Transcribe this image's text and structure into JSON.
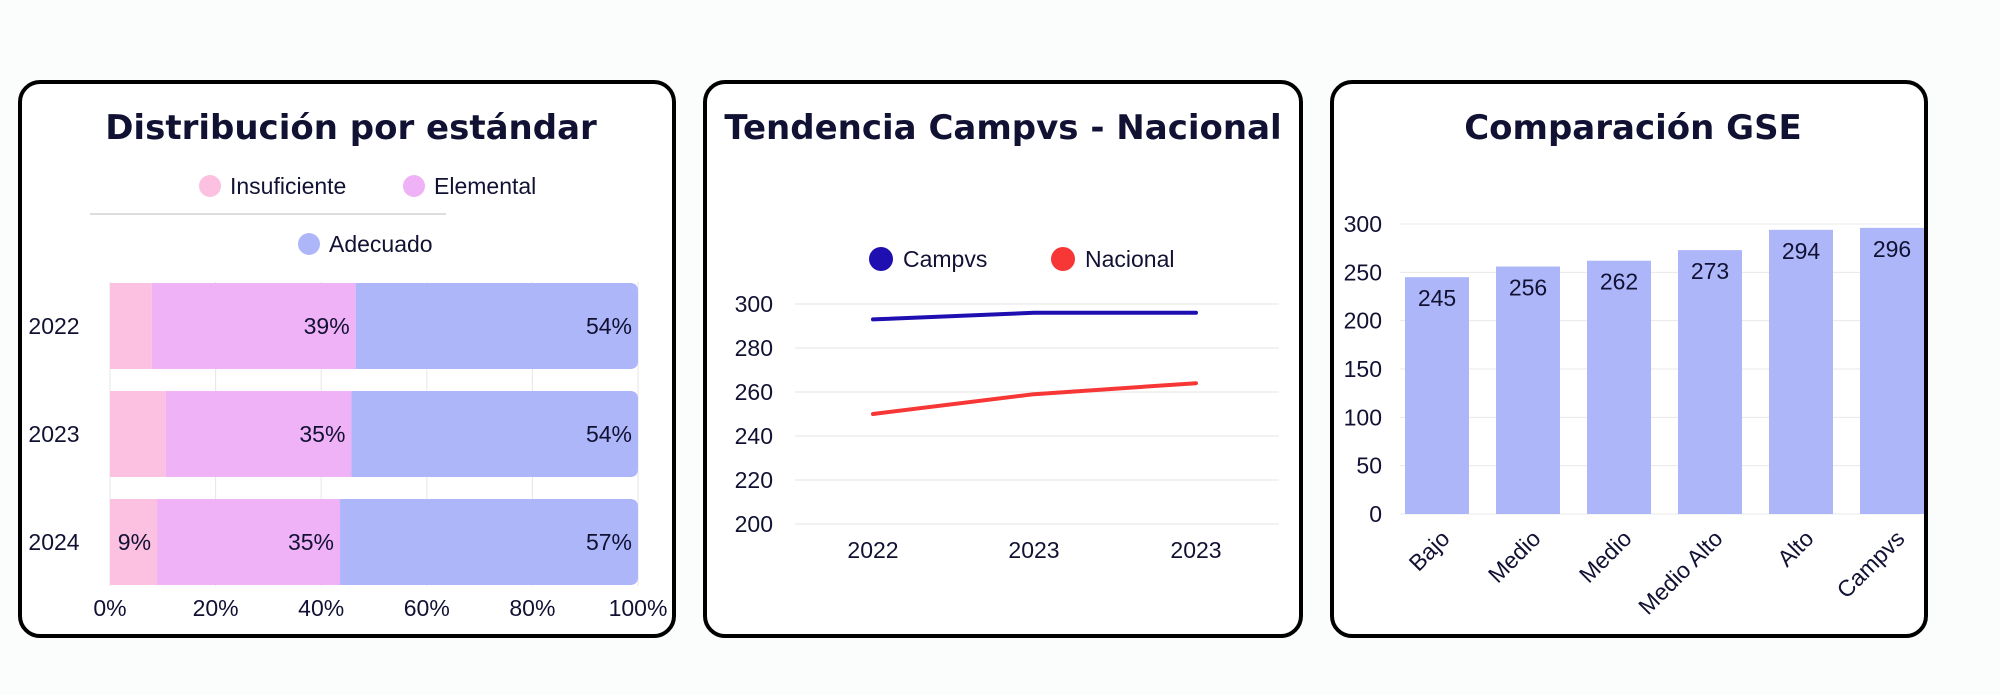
{
  "colors": {
    "insuficiente": "#fcc1e0",
    "elemental": "#f0b2f7",
    "adecuado": "#aeb6fa",
    "campvs": "#1f0fb0",
    "nacional": "#f73636",
    "bars": "#aeb6fa"
  },
  "chart_data": [
    {
      "type": "bar",
      "orientation": "horizontal",
      "stacked": true,
      "title": "Distribución por estándar",
      "categories": [
        "2022",
        "2023",
        "2024"
      ],
      "series": [
        {
          "name": "Insuficiente",
          "values": [
            8,
            10.5,
            9
          ],
          "labels": [
            "",
            "",
            "9%"
          ]
        },
        {
          "name": "Elemental",
          "values": [
            39,
            35,
            35
          ],
          "labels": [
            "39%",
            "35%",
            "35%"
          ]
        },
        {
          "name": "Adecuado",
          "values": [
            54,
            54,
            57
          ],
          "labels": [
            "54%",
            "54%",
            "57%"
          ]
        }
      ],
      "xlim": [
        0,
        100
      ],
      "xticks": [
        "0%",
        "20%",
        "40%",
        "60%",
        "80%",
        "100%"
      ],
      "grid": true,
      "legend": "top"
    },
    {
      "type": "line",
      "title": "Tendencia Campvs - Nacional",
      "x": [
        "2022",
        "2023",
        "2023"
      ],
      "series": [
        {
          "name": "Campvs",
          "values": [
            293,
            296,
            296
          ]
        },
        {
          "name": "Nacional",
          "values": [
            250,
            259,
            264
          ]
        }
      ],
      "ylim": [
        200,
        300
      ],
      "yticks": [
        "200",
        "220",
        "240",
        "260",
        "280",
        "300"
      ],
      "grid": true,
      "legend": "top"
    },
    {
      "type": "bar",
      "title": "Comparación GSE",
      "categories": [
        "Bajo",
        "Medio",
        "Medio",
        "Medio Alto",
        "Alto",
        "Campvs"
      ],
      "values": [
        245,
        256,
        262,
        273,
        294,
        296
      ],
      "ylim": [
        0,
        300
      ],
      "yticks": [
        "0",
        "50",
        "100",
        "150",
        "200",
        "250",
        "300"
      ],
      "grid": true
    }
  ]
}
